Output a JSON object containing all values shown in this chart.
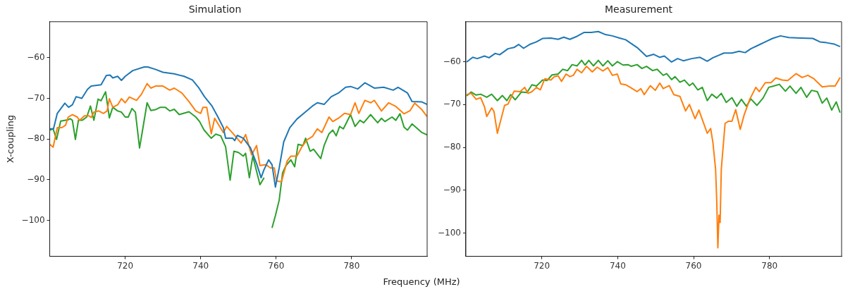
{
  "chart_data": [
    {
      "type": "line",
      "title": "Simulation",
      "xlabel": "Frequency (MHz)",
      "ylabel": "X-coupling",
      "xlim": [
        700,
        800
      ],
      "xticks": [
        720,
        740,
        760,
        780
      ],
      "ylim": [
        -108.8,
        -51.2
      ],
      "yticks": [
        -100,
        -90,
        -80,
        -70,
        -60
      ],
      "series": [
        {
          "color": "#1f77b4",
          "x": [
            700,
            701,
            702,
            704,
            705,
            706,
            707,
            708.5,
            710,
            711,
            713.6,
            715,
            716,
            716.7,
            718,
            719,
            720,
            722,
            725,
            726,
            728,
            730,
            733,
            735.6,
            737.8,
            739.4,
            741,
            743,
            744.4,
            746,
            746.6,
            748.5,
            749,
            749.7,
            751.3,
            753.2,
            754.8,
            756,
            756.7,
            758,
            758.9,
            759.8,
            760.8,
            762,
            763.6,
            765.5,
            767.7,
            769.6,
            770.9,
            772.7,
            774.6,
            776.5,
            778.4,
            779.7,
            781.6,
            783.5,
            786,
            788.5,
            791,
            792.3,
            794.8,
            796,
            798.6,
            800
          ],
          "values": [
            -77.5,
            -77.5,
            -73.7,
            -71.2,
            -72.2,
            -71.6,
            -69.6,
            -70,
            -67.8,
            -67,
            -66.7,
            -64.4,
            -64.3,
            -65,
            -64.6,
            -65.6,
            -64.6,
            -63.2,
            -62.3,
            -62.3,
            -62.9,
            -63.6,
            -64,
            -64.6,
            -65.5,
            -67.3,
            -69.6,
            -71.9,
            -74.3,
            -77.2,
            -79.8,
            -79.8,
            -80.4,
            -79.1,
            -79.8,
            -82.2,
            -86,
            -89.5,
            -87.7,
            -85.1,
            -86.3,
            -91.8,
            -87.1,
            -80.7,
            -77.2,
            -75.1,
            -73.4,
            -71.9,
            -71.1,
            -71.5,
            -69.6,
            -68.7,
            -67.3,
            -67.1,
            -67.7,
            -66.2,
            -67.5,
            -67.3,
            -68,
            -67.3,
            -68.7,
            -70.8,
            -70.9,
            -71.5
          ]
        },
        {
          "color": "#ff7f0e",
          "x": [
            700,
            700.9,
            702,
            703.2,
            704.2,
            704.9,
            706,
            707.3,
            707.9,
            709.2,
            710.4,
            711,
            711.7,
            713,
            714.2,
            715.2,
            715.8,
            716.7,
            718,
            719,
            720,
            721.1,
            723,
            724.3,
            725.8,
            726.8,
            728,
            730,
            731.8,
            733,
            735,
            736.9,
            738.7,
            740,
            740.6,
            741.6,
            742.8,
            743.7,
            746,
            746.9,
            748.8,
            750.7,
            751.9,
            753.5,
            754.8,
            755.7,
            757.3,
            758.5,
            759.5,
            760.1,
            761.4,
            762.9,
            763.9,
            765.5,
            766.8,
            768.3,
            769.6,
            770.9,
            772.1,
            774,
            775,
            776.5,
            778.1,
            779.7,
            780.9,
            781.9,
            783.5,
            785.1,
            786,
            787.9,
            789.8,
            791.7,
            793.9,
            795.5,
            796.7,
            798.6,
            800
          ],
          "values": [
            -81.3,
            -82,
            -77.2,
            -77.2,
            -76.6,
            -74.6,
            -74,
            -74.6,
            -75.4,
            -74.3,
            -74.3,
            -74.7,
            -73.4,
            -73.1,
            -73.7,
            -73.1,
            -70.1,
            -72.2,
            -71.6,
            -70.1,
            -71.1,
            -69.7,
            -70.5,
            -69,
            -66.4,
            -67.5,
            -67,
            -67,
            -68,
            -67.5,
            -68.7,
            -70.8,
            -73.1,
            -73.7,
            -72.2,
            -72.2,
            -78.7,
            -74.9,
            -78.4,
            -76.9,
            -78.9,
            -81,
            -78.9,
            -83.9,
            -81.6,
            -86.5,
            -86.3,
            -87.1,
            -87.1,
            -90.3,
            -90.5,
            -85.4,
            -84.2,
            -84.2,
            -81.9,
            -80.1,
            -79.4,
            -77.5,
            -78.4,
            -74.6,
            -75.7,
            -74.9,
            -73.7,
            -74,
            -71.1,
            -73.7,
            -70.5,
            -71.1,
            -70.5,
            -73.1,
            -71.1,
            -72,
            -73.8,
            -73,
            -71.2,
            -72.8,
            -74.5
          ]
        },
        {
          "color": "#2ca02c",
          "x": [
            700,
            700.9,
            701.8,
            702.9,
            704.8,
            705.4,
            706,
            706.8,
            707.6,
            708.6,
            709.8,
            710.8,
            711.7,
            712.8,
            713.6,
            714.8,
            715.8,
            716.7,
            718,
            719,
            720,
            720.8,
            721.8,
            722.7,
            723.8,
            724.6,
            725.8,
            726.8,
            728,
            729.3,
            730.6,
            731.8,
            733,
            734.3,
            736.9,
            738.7,
            739.7,
            740.9,
            742.8,
            744,
            745.3,
            746.6,
            747.8,
            748.8,
            750,
            751.3,
            751.9,
            752.9,
            753.8,
            755.7,
            756.8,
            757.3,
            758.5,
            758.9,
            759.8,
            760.8,
            761.7,
            762.6,
            763.9,
            764.9,
            765.8,
            767.1,
            767.8,
            769,
            769.9,
            771.8,
            772.7,
            774,
            775,
            775.9,
            776.8,
            777.8,
            779.7,
            780.9,
            782.2,
            783.2,
            785,
            786.9,
            787.9,
            788.8,
            790.7,
            791.7,
            792.8,
            793.9,
            794.8,
            796,
            798.6,
            800
          ],
          "values": [
            -77.8,
            -77.5,
            -80.1,
            -75.6,
            -75.3,
            -75,
            -75.4,
            -80.1,
            -75.4,
            -75.4,
            -74.6,
            -71.9,
            -75.4,
            -70.2,
            -70.6,
            -68.4,
            -74.8,
            -72.2,
            -73.1,
            -73.4,
            -74.6,
            -74.6,
            -72.5,
            -73.4,
            -82.2,
            -77.8,
            -71.1,
            -73,
            -72.8,
            -72.2,
            -72.2,
            -73.1,
            -72.7,
            -74,
            -73.3,
            -74.6,
            -75.7,
            -77.8,
            -79.8,
            -78.8,
            -79.2,
            -81.9,
            -90.1,
            -83,
            -83.3,
            -84.2,
            -83.5,
            -89.5,
            -84.2,
            -91.2,
            -89.5,
            null,
            null,
            -101.8,
            -98.8,
            -95,
            -88.3,
            -86.5,
            -85.1,
            -86.8,
            -81.3,
            -81.6,
            -79.8,
            -83,
            -82.5,
            -84.8,
            -81.6,
            -78.7,
            -77.8,
            -79.2,
            -76.9,
            -77.5,
            -74,
            -76.9,
            -75.4,
            -76,
            -74,
            -76,
            -74.9,
            -75.7,
            -74.6,
            -75.4,
            -73.8,
            -77.1,
            -77.8,
            -76.3,
            -78.4,
            -79
          ]
        }
      ]
    },
    {
      "type": "line",
      "title": "Measurement",
      "xlim": [
        700,
        799
      ],
      "xticks": [
        720,
        740,
        760,
        780
      ],
      "ylim": [
        -105.4,
        -50.7
      ],
      "yticks": [
        -100,
        -90,
        -80,
        -70,
        -60
      ],
      "series": [
        {
          "color": "#1f77b4",
          "x": [
            700.2,
            701.8,
            703,
            704.9,
            706.1,
            707.7,
            708.9,
            711.1,
            712.7,
            713.9,
            715.2,
            716.8,
            718.6,
            720.2,
            722.4,
            724.3,
            725.8,
            727.4,
            729.3,
            731.1,
            733,
            734.9,
            736.8,
            738.6,
            740.5,
            742.1,
            745.1,
            747.6,
            749.5,
            751.1,
            752.3,
            754.2,
            755.8,
            757.3,
            759.5,
            761.7,
            763.6,
            765.1,
            768,
            770.1,
            772,
            773.6,
            775.1,
            777,
            778.9,
            780.8,
            782.9,
            785.1,
            788.3,
            791.4,
            793.3,
            795.1,
            797,
            798.6
          ],
          "values": [
            -60.1,
            -59,
            -59.3,
            -58.7,
            -59.1,
            -58.1,
            -58.4,
            -57,
            -56.7,
            -56,
            -56.9,
            -56,
            -55.4,
            -54.6,
            -54.5,
            -54.8,
            -54.3,
            -54.8,
            -54.1,
            -53.2,
            -53.2,
            -53,
            -53.7,
            -54,
            -54.5,
            -54.9,
            -56.7,
            -58.8,
            -58.3,
            -59,
            -58.7,
            -60.1,
            -59.3,
            -59.8,
            -59.3,
            -59,
            -59.9,
            -59.1,
            -58,
            -58,
            -57.6,
            -57.9,
            -57,
            -56.2,
            -55.4,
            -54.6,
            -54,
            -54.4,
            -54.5,
            -54.6,
            -55.4,
            -55.6,
            -55.9,
            -56.5
          ]
        },
        {
          "color": "#ff7f0e",
          "x": [
            700.2,
            701.4,
            702.7,
            703.9,
            704.9,
            705.5,
            706.8,
            707.4,
            708.3,
            709.3,
            710.2,
            711.1,
            712.7,
            714.3,
            715.5,
            716.4,
            717.4,
            718.6,
            719.6,
            720.8,
            722.4,
            723.3,
            724.3,
            725.2,
            726.4,
            727.4,
            728.3,
            729.3,
            730.5,
            731.8,
            733.3,
            734.6,
            736.1,
            737.4,
            738.6,
            739.9,
            740.8,
            742.1,
            743.3,
            745.1,
            746.1,
            747,
            748.6,
            749.9,
            751.1,
            752,
            753.6,
            754.8,
            756.4,
            757.9,
            758.9,
            760.4,
            761.4,
            763.6,
            764.5,
            765.1,
            765.8,
            766.1,
            766.4,
            766.7,
            767,
            767.3,
            768.3,
            769.2,
            770.1,
            771.1,
            772.3,
            773.3,
            774.8,
            776.4,
            777.3,
            778.9,
            780.4,
            781.7,
            783.3,
            784.8,
            787,
            788.6,
            790.1,
            791.7,
            793.9,
            795.8,
            797.3,
            798.6
          ],
          "values": [
            -67.7,
            -67.4,
            -68.8,
            -68.4,
            -70.5,
            -72.8,
            -70.8,
            -71.6,
            -76.7,
            -73.3,
            -70.2,
            -69.9,
            -66.9,
            -67,
            -66,
            -67.4,
            -67,
            -66,
            -66.6,
            -64,
            -64.3,
            -63.5,
            -63.3,
            -64.6,
            -62.9,
            -63.5,
            -63.2,
            -61.8,
            -62.6,
            -61.1,
            -62.4,
            -61.3,
            -62.2,
            -61.4,
            -63.2,
            -62.9,
            -65.2,
            -65.4,
            -66,
            -67,
            -66.3,
            -67.7,
            -65.6,
            -66.7,
            -65,
            -66.3,
            -65.6,
            -67.7,
            -68.1,
            -71.5,
            -70,
            -73.3,
            -71.3,
            -76.7,
            -75.6,
            -78.9,
            -85.1,
            -92.4,
            -103.4,
            -95.8,
            -97.5,
            -85.1,
            -74.4,
            -73.9,
            -73.9,
            -71.2,
            -75.8,
            -72.5,
            -68.8,
            -66,
            -67,
            -64.9,
            -64.9,
            -63.8,
            -64.3,
            -64.4,
            -62.8,
            -63.7,
            -63.2,
            -64,
            -65.9,
            -65.7,
            -65.7,
            -63.7
          ]
        },
        {
          "color": "#2ca02c",
          "x": [
            700.2,
            701.4,
            702.7,
            703.9,
            705.5,
            706.8,
            708.3,
            709.6,
            710.8,
            711.8,
            713,
            714.6,
            716.1,
            717.4,
            718.6,
            720.2,
            721.4,
            722.7,
            724.3,
            725.5,
            726.8,
            728,
            729.3,
            730.5,
            731.4,
            732.4,
            733.6,
            734.9,
            736.1,
            737.4,
            738.6,
            739.9,
            741.4,
            742.7,
            743.6,
            745.1,
            746.4,
            747.6,
            749.2,
            750.4,
            752,
            752.9,
            754.2,
            755.1,
            756.4,
            757.6,
            758.9,
            759.8,
            761.1,
            762.3,
            763.6,
            764.8,
            766.1,
            767.3,
            768.6,
            770.1,
            771.4,
            772.6,
            773.9,
            775.1,
            776.7,
            778.3,
            779.8,
            781.1,
            782.6,
            784.2,
            785.4,
            787,
            788.3,
            789.8,
            791.1,
            792.6,
            793.9,
            795.1,
            796.4,
            797.6,
            798.6
          ],
          "values": [
            -68,
            -67.1,
            -67.8,
            -67.6,
            -68.3,
            -67.6,
            -69.1,
            -67.9,
            -69.1,
            -67.7,
            -68.9,
            -67.1,
            -67.2,
            -65.4,
            -65.7,
            -64.3,
            -64.4,
            -63.1,
            -62.9,
            -61.8,
            -62.1,
            -60.7,
            -61,
            -59.7,
            -60.8,
            -59.7,
            -61,
            -59.7,
            -61,
            -59.8,
            -61,
            -60,
            -60.8,
            -60.7,
            -61.1,
            -60.7,
            -61.6,
            -61.1,
            -62.1,
            -61.8,
            -63.2,
            -62.8,
            -64.2,
            -63.5,
            -64.8,
            -64.3,
            -65.6,
            -65,
            -66.6,
            -66,
            -69.1,
            -67.6,
            -68.5,
            -67.4,
            -69.5,
            -68.4,
            -70.4,
            -68.8,
            -70.4,
            -68.7,
            -70.2,
            -68.5,
            -66,
            -65.7,
            -65.3,
            -66.9,
            -65.7,
            -67.4,
            -66,
            -68.3,
            -66.7,
            -67,
            -69.7,
            -68.5,
            -71.3,
            -69.4,
            -71.9
          ]
        }
      ]
    }
  ]
}
